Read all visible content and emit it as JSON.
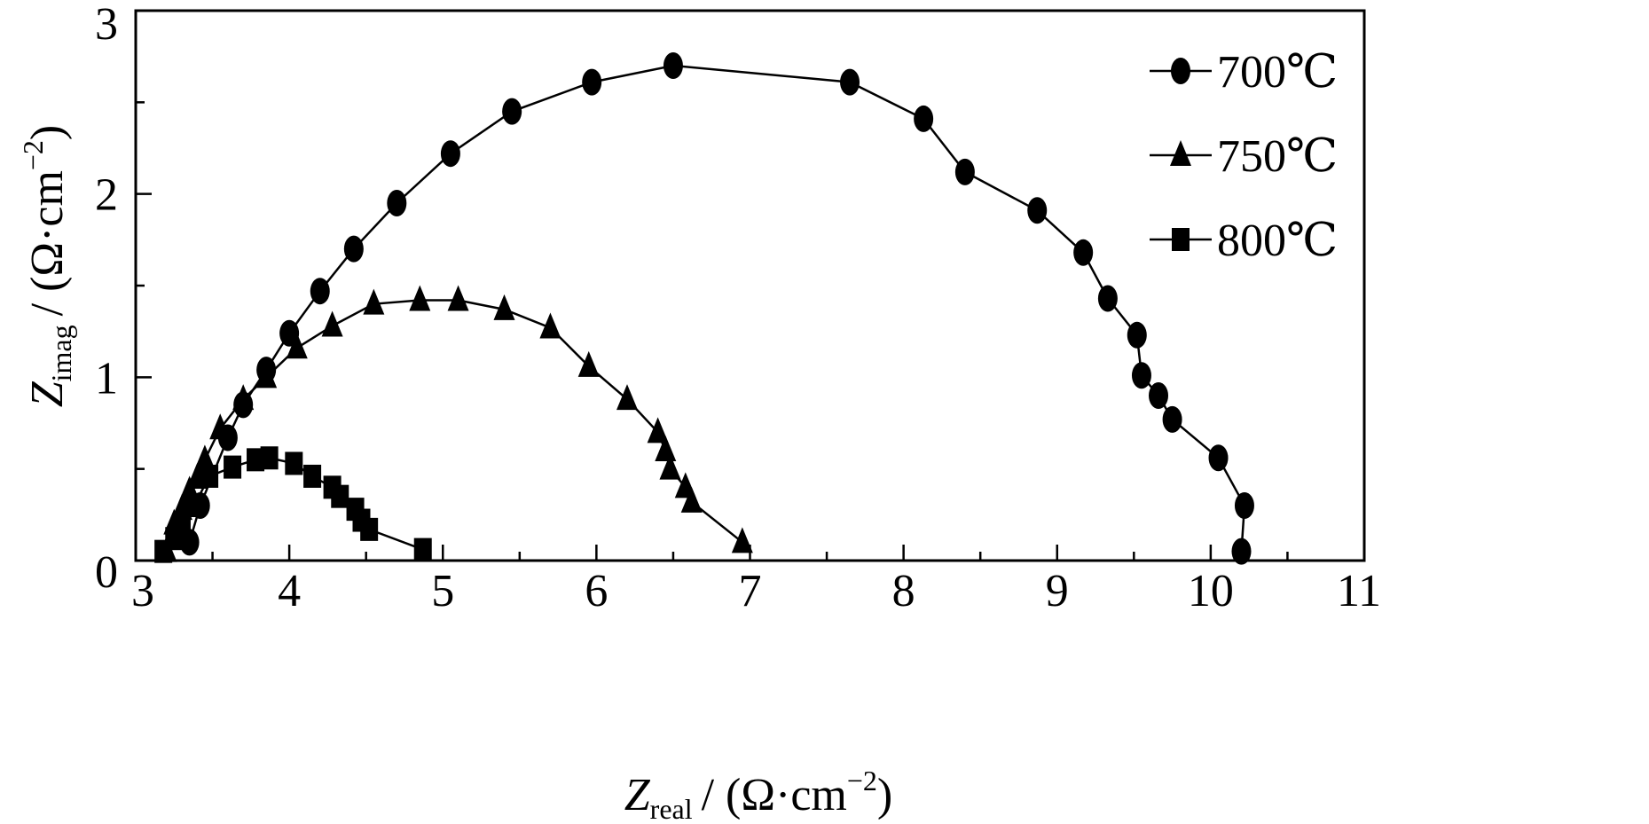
{
  "chart_data": {
    "type": "scatter",
    "xlabel": {
      "base": "Z",
      "sub": "real",
      "unit": "/ (Ω·cm",
      "sup": "−2",
      "close": ")"
    },
    "ylabel": {
      "base": "Z",
      "sub": "imag",
      "unit": "/ (Ω·cm",
      "sup": "−2",
      "close": ")"
    },
    "xlim": [
      3,
      11
    ],
    "ylim": [
      0,
      3
    ],
    "xticks": [
      "3",
      "4",
      "5",
      "6",
      "7",
      "8",
      "9",
      "10",
      "11"
    ],
    "yticks": [
      "0",
      "1",
      "2",
      "3"
    ],
    "grid": false,
    "legend_position": "top-right",
    "series": [
      {
        "name": "700℃",
        "marker": "circle",
        "color": "#000000",
        "x": [
          3.35,
          3.42,
          3.6,
          3.7,
          3.85,
          4.0,
          4.2,
          4.42,
          4.7,
          5.05,
          5.45,
          5.97,
          6.5,
          7.65,
          8.13,
          8.4,
          8.87,
          9.17,
          9.33,
          9.52,
          9.55,
          9.66,
          9.75,
          10.05,
          10.22,
          10.2
        ],
        "y": [
          0.1,
          0.3,
          0.67,
          0.85,
          1.04,
          1.24,
          1.47,
          1.7,
          1.95,
          2.22,
          2.45,
          2.61,
          2.7,
          2.61,
          2.41,
          2.12,
          1.91,
          1.68,
          1.43,
          1.23,
          1.01,
          0.9,
          0.77,
          0.56,
          0.3,
          0.05
        ]
      },
      {
        "name": "750℃",
        "marker": "triangle",
        "color": "#000000",
        "x": [
          3.2,
          3.25,
          3.3,
          3.35,
          3.4,
          3.45,
          3.55,
          3.7,
          3.85,
          4.05,
          4.28,
          4.55,
          4.85,
          5.1,
          5.4,
          5.7,
          5.95,
          6.2,
          6.4,
          6.45,
          6.48,
          6.58,
          6.62,
          6.95
        ],
        "y": [
          0.05,
          0.2,
          0.28,
          0.38,
          0.45,
          0.55,
          0.72,
          0.88,
          1.0,
          1.16,
          1.28,
          1.4,
          1.42,
          1.42,
          1.37,
          1.27,
          1.06,
          0.88,
          0.7,
          0.6,
          0.5,
          0.4,
          0.32,
          0.1
        ]
      },
      {
        "name": "800℃",
        "marker": "square",
        "color": "#000000",
        "x": [
          3.18,
          3.25,
          3.3,
          3.38,
          3.48,
          3.63,
          3.78,
          3.87,
          4.03,
          4.15,
          4.28,
          4.33,
          4.43,
          4.47,
          4.52,
          4.87
        ],
        "y": [
          0.05,
          0.12,
          0.2,
          0.3,
          0.46,
          0.51,
          0.55,
          0.56,
          0.53,
          0.46,
          0.4,
          0.35,
          0.28,
          0.22,
          0.17,
          0.06
        ]
      }
    ]
  }
}
